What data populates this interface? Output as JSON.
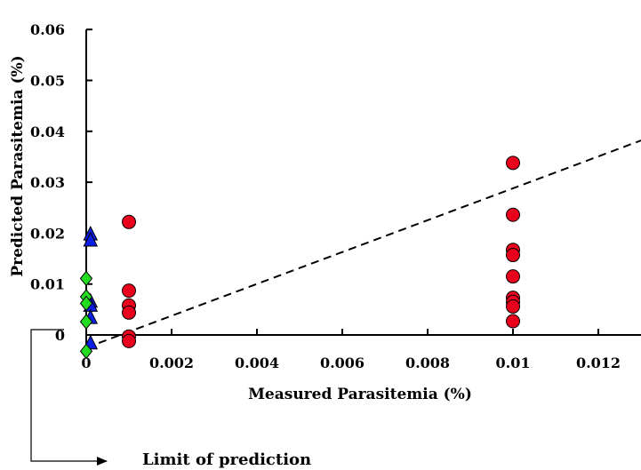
{
  "chart_data": {
    "type": "scatter",
    "xlabel": "Measured Parasitemia (%)",
    "ylabel": "Predicted Parasitemia (%)",
    "x_ticks": [
      "0",
      "0.002",
      "0.004",
      "0.006",
      "0.008",
      "0.01",
      "0.012"
    ],
    "y_ticks": [
      "0",
      "0.01",
      "0.02",
      "0.03",
      "0.04",
      "0.05",
      "0.06"
    ],
    "xlim": [
      0,
      0.013
    ],
    "ylim": [
      -0.004,
      0.06
    ],
    "grid": false,
    "series": [
      {
        "marker": "circle",
        "color": "#e8001c",
        "points": [
          [
            0.001,
            0.0222
          ],
          [
            0.001,
            0.0087
          ],
          [
            0.001,
            0.0058
          ],
          [
            0.001,
            0.0044
          ],
          [
            0.001,
            -0.0003
          ],
          [
            0.001,
            -0.0012
          ],
          [
            0.01,
            0.0338
          ],
          [
            0.01,
            0.0236
          ],
          [
            0.01,
            0.0167
          ],
          [
            0.01,
            0.0157
          ],
          [
            0.01,
            0.0115
          ],
          [
            0.01,
            0.0073
          ],
          [
            0.01,
            0.0065
          ],
          [
            0.01,
            0.0056
          ],
          [
            0.01,
            0.0027
          ]
        ]
      },
      {
        "marker": "triangle",
        "color": "#0a1ee6",
        "points": [
          [
            0.0001,
            0.0197
          ],
          [
            0.0001,
            0.0185
          ],
          [
            0.0001,
            0.0065
          ],
          [
            0.0001,
            0.0057
          ],
          [
            0.0001,
            0.0033
          ],
          [
            0.0001,
            -0.0017
          ]
        ]
      },
      {
        "marker": "diamond",
        "color": "#22dd22",
        "points": [
          [
            0.0,
            0.0111
          ],
          [
            0.0,
            0.0075
          ],
          [
            0.0,
            0.0062
          ],
          [
            0.0,
            0.0026
          ],
          [
            0.0,
            -0.0032
          ]
        ]
      }
    ],
    "trendline": {
      "style": "dashed",
      "from": [
        0.0,
        -0.0025
      ],
      "to": [
        0.013,
        0.0382
      ]
    },
    "annotations": [
      {
        "text": "Limit of prediction"
      }
    ]
  }
}
